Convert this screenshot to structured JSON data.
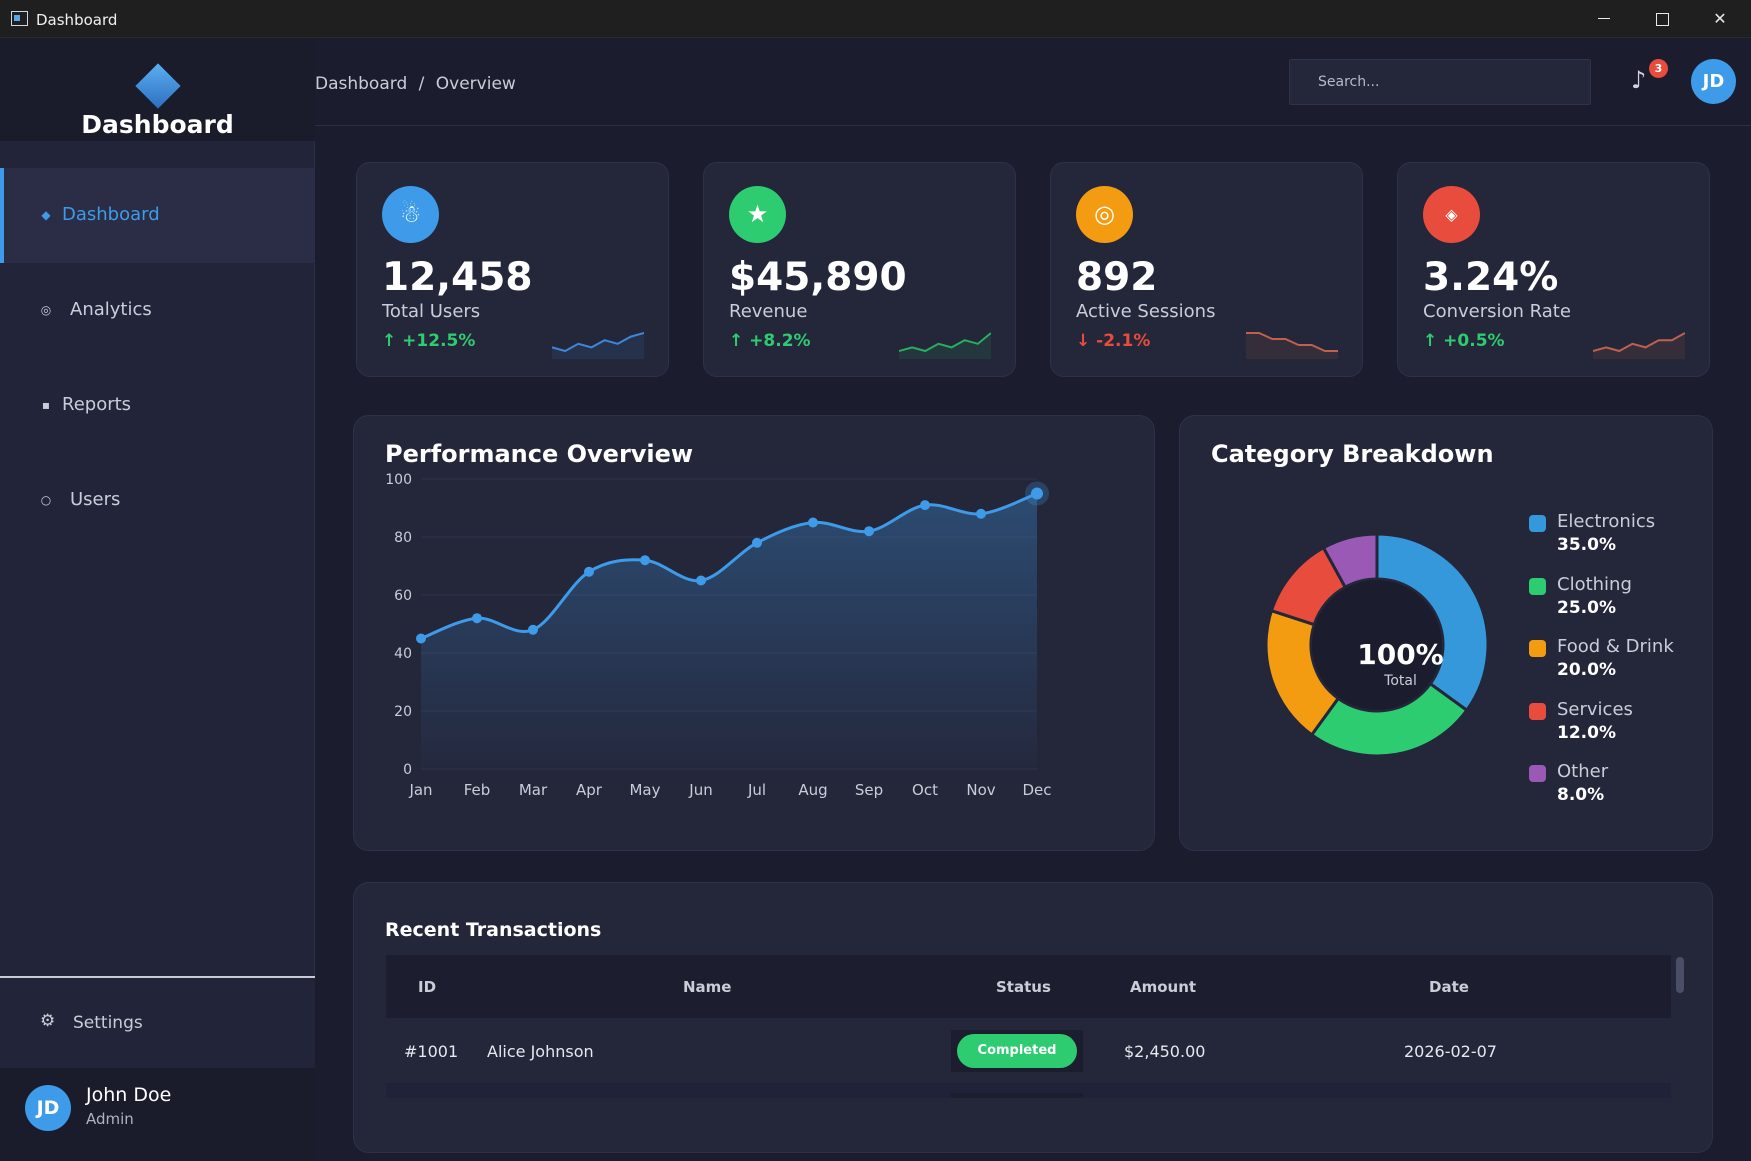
{
  "window": {
    "title": "Dashboard"
  },
  "brand": {
    "name": "Dashboard"
  },
  "sidebar": {
    "items": [
      {
        "label": "Dashboard",
        "icon": "diamond-icon"
      },
      {
        "label": "Analytics",
        "icon": "target-icon"
      },
      {
        "label": "Reports",
        "icon": "square-icon"
      },
      {
        "label": "Users",
        "icon": "circle-icon"
      }
    ],
    "settings_label": "Settings"
  },
  "user": {
    "initials": "JD",
    "name": "John Doe",
    "role": "Admin"
  },
  "header": {
    "breadcrumb": [
      "Dashboard",
      "/",
      "Overview"
    ],
    "search_placeholder": "Search...",
    "notification_count": "3",
    "avatar_initials": "JD"
  },
  "stats": [
    {
      "value": "12,458",
      "label": "Total Users",
      "trend": "↑ +12.5%",
      "trend_dir": "up",
      "color": "#3d9be9",
      "icon": "snowman-icon",
      "spark": [
        3,
        2,
        4,
        3,
        5,
        4,
        6,
        7
      ],
      "spark_color": "#3d86d9"
    },
    {
      "value": "$45,890",
      "label": "Revenue",
      "trend": "↑ +8.2%",
      "trend_dir": "up",
      "color": "#2ecc71",
      "icon": "star-icon",
      "spark": [
        2,
        3,
        2,
        4,
        3,
        5,
        4,
        7
      ],
      "spark_color": "#27ae60"
    },
    {
      "value": "892",
      "label": "Active Sessions",
      "trend": "↓ -2.1%",
      "trend_dir": "down",
      "color": "#f39c12",
      "icon": "target-icon",
      "spark": [
        7,
        7,
        6,
        6,
        5,
        5,
        4,
        4
      ],
      "spark_color": "#c0604e"
    },
    {
      "value": "3.24%",
      "label": "Conversion Rate",
      "trend": "↑ +0.5%",
      "trend_dir": "up",
      "color": "#e74c3c",
      "icon": "diamond-icon",
      "spark": [
        2,
        3,
        2,
        4,
        3,
        5,
        5,
        7
      ],
      "spark_color": "#c0604e"
    }
  ],
  "performance": {
    "title": "Performance Overview",
    "chart_data": {
      "type": "area",
      "categories": [
        "Jan",
        "Feb",
        "Mar",
        "Apr",
        "May",
        "Jun",
        "Jul",
        "Aug",
        "Sep",
        "Oct",
        "Nov",
        "Dec"
      ],
      "values": [
        45,
        52,
        48,
        68,
        72,
        65,
        78,
        85,
        82,
        91,
        88,
        95
      ],
      "yticks": [
        0,
        20,
        40,
        60,
        80,
        100
      ],
      "ylim": [
        0,
        100
      ],
      "color": "#3d9be9",
      "grid": true
    }
  },
  "category": {
    "title": "Category Breakdown",
    "total_label": "100%",
    "total_sub": "Total",
    "chart_data": {
      "type": "pie",
      "labels": [
        "Electronics",
        "Clothing",
        "Food & Drink",
        "Services",
        "Other"
      ],
      "values": [
        35.0,
        25.0,
        20.0,
        12.0,
        8.0
      ],
      "display_values": [
        "35.0%",
        "25.0%",
        "20.0%",
        "12.0%",
        "8.0%"
      ],
      "colors": [
        "#3498db",
        "#2ecc71",
        "#f39c12",
        "#e74c3c",
        "#9b59b6"
      ],
      "legend": "right"
    }
  },
  "transactions": {
    "title": "Recent Transactions",
    "columns": [
      "ID",
      "Name",
      "Status",
      "Amount",
      "Date"
    ],
    "rows": [
      {
        "id": "#1001",
        "name": "Alice Johnson",
        "status": "Completed",
        "amount": "$2,450.00",
        "date": "2026-02-07"
      }
    ]
  }
}
